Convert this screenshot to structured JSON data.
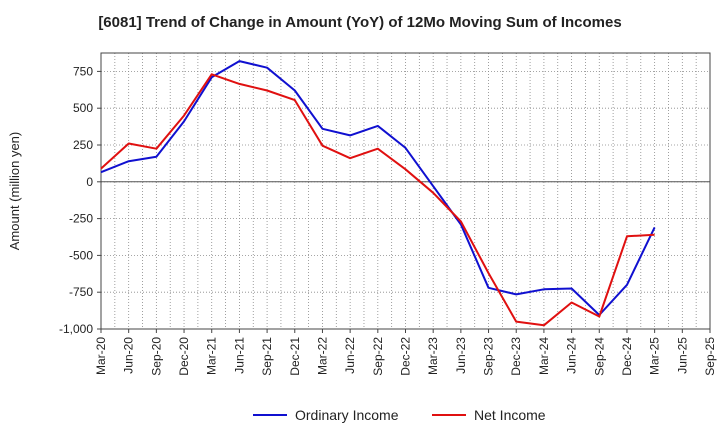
{
  "chart_data": {
    "type": "line",
    "title": "[6081]  Trend of Change in Amount (YoY) of 12Mo Moving Sum of Incomes",
    "ylabel": "Amount (million yen)",
    "xlabel": "",
    "ylim": [
      -1000,
      875
    ],
    "yticks": [
      750,
      500,
      250,
      0,
      -250,
      -500,
      -750,
      -1000
    ],
    "ytick_labels": [
      "750",
      "500",
      "250",
      "0",
      "-250",
      "-500",
      "-750",
      "-1,000"
    ],
    "categories": [
      "Mar-20",
      "Jun-20",
      "Sep-20",
      "Dec-20",
      "Mar-21",
      "Jun-21",
      "Sep-21",
      "Dec-21",
      "Mar-22",
      "Jun-22",
      "Sep-22",
      "Dec-22",
      "Mar-23",
      "Jun-23",
      "Sep-23",
      "Dec-23",
      "Mar-24",
      "Jun-24",
      "Sep-24",
      "Dec-24",
      "Mar-25",
      "Jun-25",
      "Sep-25"
    ],
    "grid": true,
    "legend_position": "bottom-center",
    "series": [
      {
        "name": "Ordinary Income",
        "color": "#1010d0",
        "values": [
          65,
          140,
          170,
          410,
          710,
          820,
          775,
          620,
          360,
          315,
          380,
          230,
          -30,
          -290,
          -720,
          -765,
          -730,
          -725,
          -905,
          -700,
          -310,
          null,
          null
        ]
      },
      {
        "name": "Net Income",
        "color": "#e01010",
        "values": [
          90,
          260,
          225,
          450,
          730,
          665,
          620,
          555,
          245,
          160,
          225,
          85,
          -75,
          -270,
          -620,
          -950,
          -975,
          -820,
          -915,
          -370,
          -360,
          null,
          null
        ]
      }
    ]
  }
}
